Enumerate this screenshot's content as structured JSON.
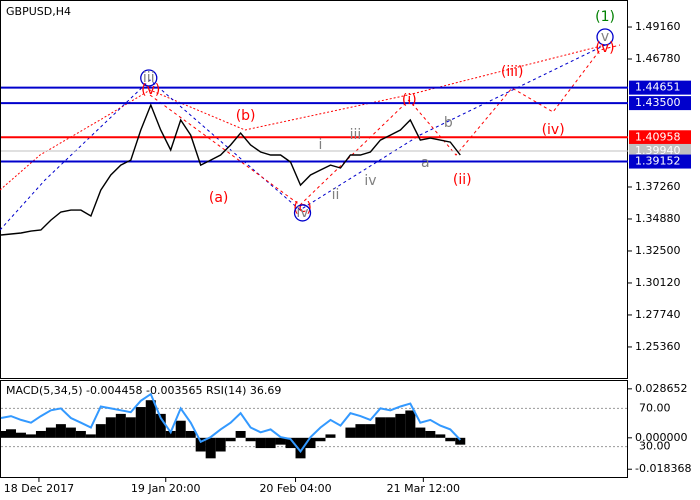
{
  "chart_data": [
    {
      "type": "line",
      "title": "GBPUSD,H4",
      "values": [
        1.3369,
        1.3376,
        1.3384,
        1.3398,
        1.3406,
        1.348,
        1.354,
        1.3554,
        1.3554,
        1.351,
        1.3703,
        1.3815,
        1.3889,
        1.3926,
        1.415,
        1.4336,
        1.415,
        1.4001,
        1.4224,
        1.4112,
        1.3889,
        1.3926,
        1.3964,
        1.4038,
        1.4127,
        1.4038,
        1.3986,
        1.3964,
        1.3964,
        1.3912,
        1.374,
        1.3815,
        1.3852,
        1.3889,
        1.3867,
        1.3964,
        1.3964,
        1.3986,
        1.4075,
        1.4112,
        1.415,
        1.4224,
        1.4075,
        1.409,
        1.4075,
        1.406,
        1.3964
      ],
      "color": "#000000",
      "xlim": [
        0,
        62.8
      ],
      "xticks": [
        {
          "value": 3.8,
          "label": "18 Dec 2017"
        },
        {
          "value": 16.5,
          "label": "19 Jan 20:00"
        },
        {
          "value": 29.5,
          "label": "20 Feb 04:00"
        },
        {
          "value": 42.3,
          "label": "21 Mar 12:00"
        }
      ],
      "ylim": [
        1.2305,
        1.5117
      ],
      "yticks": [
        {
          "value": 1.4916,
          "label": "1.49160"
        },
        {
          "value": 1.4678,
          "label": "1.46780"
        },
        {
          "value": 1.3726,
          "label": "1.37260"
        },
        {
          "value": 1.3488,
          "label": "1.34880"
        },
        {
          "value": 1.325,
          "label": "1.32500"
        },
        {
          "value": 1.3012,
          "label": "1.30120"
        },
        {
          "value": 1.2774,
          "label": "1.27740"
        },
        {
          "value": 1.2536,
          "label": "1.25360"
        }
      ],
      "levels": [
        {
          "value": 1.44651,
          "label": "1.44651",
          "color": "#0000cc"
        },
        {
          "value": 1.435,
          "label": "1.43500",
          "color": "#0000cc"
        },
        {
          "value": 1.40958,
          "label": "1.40958",
          "color": "#ff0000"
        },
        {
          "value": 1.3994,
          "label": "1.39940",
          "color": "#c0c0c0"
        },
        {
          "value": 1.39152,
          "label": "1.39152",
          "color": "#0000cc"
        }
      ],
      "annotations": [
        {
          "text": "(1)",
          "x": 60.5,
          "y": 1.499,
          "color": "#008000"
        },
        {
          "text": "v",
          "x": 60.5,
          "y": 1.4842,
          "color": "#808080",
          "circle": true
        },
        {
          "text": "(v)",
          "x": 60.5,
          "y": 1.476,
          "color": "#ff0000"
        },
        {
          "text": "iii",
          "x": 14.8,
          "y": 1.4537,
          "color": "#808080",
          "circle": true
        },
        {
          "text": "(v)",
          "x": 15.0,
          "y": 1.4447,
          "color": "#ff0000"
        },
        {
          "text": "(b)",
          "x": 24.5,
          "y": 1.4254,
          "color": "#ff0000"
        },
        {
          "text": "(a)",
          "x": 21.8,
          "y": 1.3644,
          "color": "#ff0000"
        },
        {
          "text": "(c)",
          "x": 30.2,
          "y": 1.357,
          "color": "#ff0000"
        },
        {
          "text": "iv",
          "x": 30.2,
          "y": 1.3533,
          "color": "#808080",
          "circle": true
        },
        {
          "text": "i",
          "x": 32.0,
          "y": 1.4038,
          "color": "#808080"
        },
        {
          "text": "ii",
          "x": 33.5,
          "y": 1.3666,
          "color": "#808080"
        },
        {
          "text": "iii",
          "x": 35.5,
          "y": 1.4113,
          "color": "#808080"
        },
        {
          "text": "iv",
          "x": 37.0,
          "y": 1.3771,
          "color": "#808080"
        },
        {
          "text": "(i)",
          "x": 40.9,
          "y": 1.4373,
          "color": "#ff0000"
        },
        {
          "text": "b",
          "x": 44.8,
          "y": 1.4202,
          "color": "#808080"
        },
        {
          "text": "a",
          "x": 42.5,
          "y": 1.3904,
          "color": "#808080"
        },
        {
          "text": "(ii)",
          "x": 46.2,
          "y": 1.3778,
          "color": "#ff0000"
        },
        {
          "text": "(iii)",
          "x": 51.2,
          "y": 1.4581,
          "color": "#ff0000"
        },
        {
          "text": "(iv)",
          "x": 55.3,
          "y": 1.415,
          "color": "#ff0000"
        }
      ]
    },
    {
      "type": "macd",
      "title": "MACD(5,34,5) -0.004458 -0.003565 RSI(14) 36.69",
      "series": [
        {
          "name": "MACD",
          "color": "#000000",
          "values": [
            0.004,
            0.005,
            0.003,
            0.002,
            0.004,
            0.006,
            0.008,
            0.006,
            0.004,
            0.002,
            0.008,
            0.012,
            0.014,
            0.012,
            0.018,
            0.022,
            0.014,
            0.004,
            0.01,
            0.004,
            -0.008,
            -0.012,
            -0.008,
            -0.002,
            0.004,
            -0.002,
            -0.006,
            -0.006,
            -0.004,
            -0.006,
            -0.012,
            -0.006,
            -0.002,
            0.002,
            0.0,
            0.006,
            0.008,
            0.008,
            0.012,
            0.012,
            0.014,
            0.016,
            0.006,
            0.004,
            0.002,
            -0.002,
            -0.004
          ]
        },
        {
          "name": "RSI",
          "color": "#3399ff",
          "axis": "y2",
          "values": [
            60,
            62,
            58,
            55,
            62,
            68,
            70,
            60,
            55,
            50,
            72,
            70,
            68,
            66,
            78,
            85,
            60,
            45,
            70,
            55,
            35,
            40,
            48,
            55,
            65,
            50,
            45,
            48,
            40,
            38,
            25,
            40,
            50,
            58,
            52,
            65,
            62,
            58,
            70,
            68,
            72,
            75,
            55,
            58,
            52,
            48,
            37
          ]
        }
      ],
      "xlim": [
        0,
        62.8
      ],
      "ylim": [
        -0.02292,
        0.03324
      ],
      "yticks": [
        0.028652,
        {
          "value": 0,
          "label": "0.000000"
        },
        -0.018368
      ],
      "y2lim": [
        -1.8,
        98.7
      ],
      "y2ticks": [
        {
          "value": 70,
          "label": "70.00"
        },
        {
          "value": 30,
          "label": "30.00"
        }
      ]
    }
  ]
}
